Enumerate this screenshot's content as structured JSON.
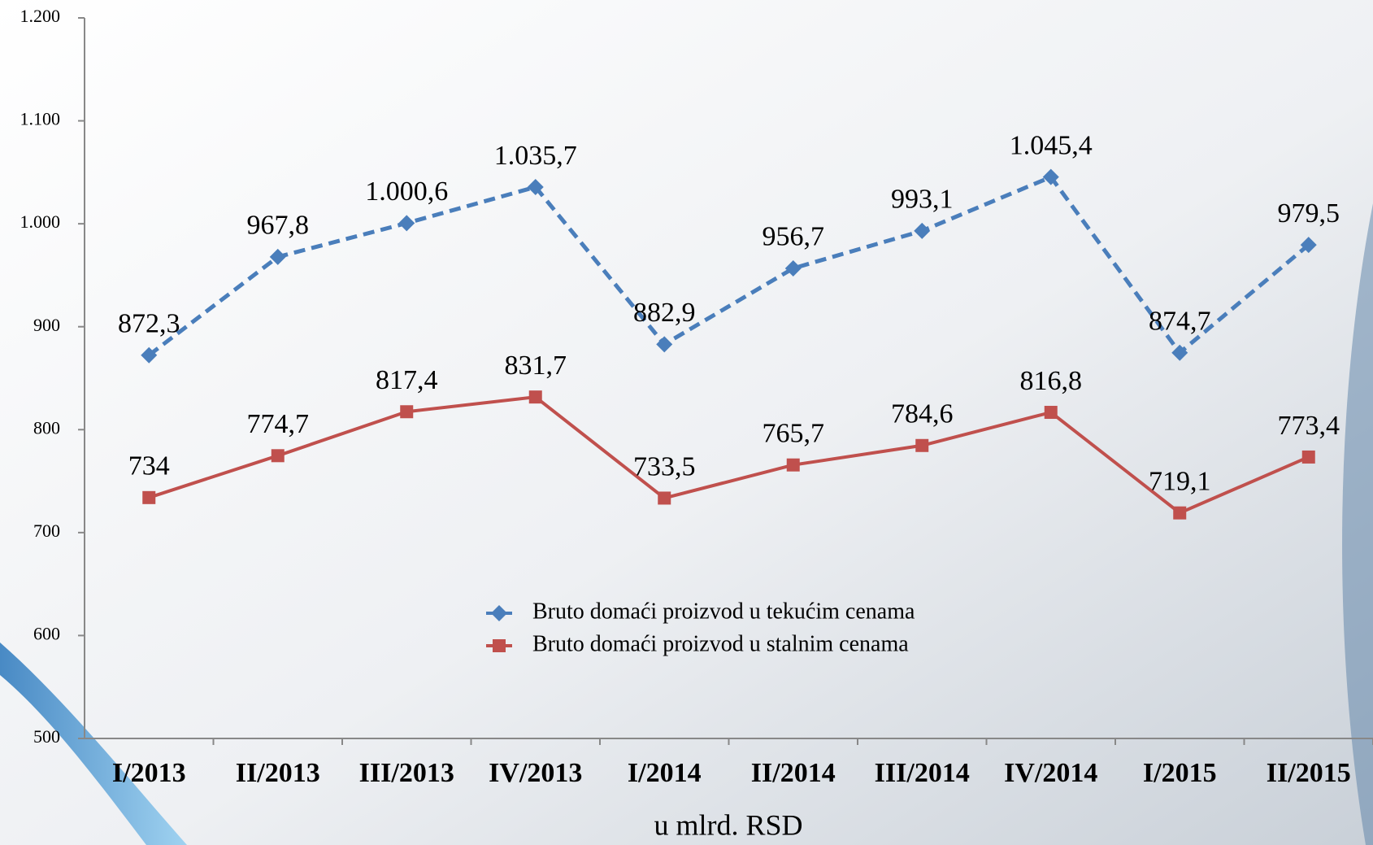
{
  "chart_data": {
    "type": "line",
    "categories": [
      "I/2013",
      "II/2013",
      "III/2013",
      "IV/2013",
      "I/2014",
      "II/2014",
      "III/2014",
      "IV/2014",
      "I/2015",
      "II/2015"
    ],
    "series": [
      {
        "name": "Bruto domaći proizvod u tekućim cenama",
        "color": "#4a7ebb",
        "dashed": true,
        "marker": "diamond",
        "values": [
          872.3,
          967.8,
          1000.6,
          1035.7,
          882.9,
          956.7,
          993.1,
          1045.4,
          874.7,
          979.5
        ],
        "value_labels": [
          "872,3",
          "967,8",
          "1.000,6",
          "1.035,7",
          "882,9",
          "956,7",
          "993,1",
          "1.045,4",
          "874,7",
          "979,5"
        ]
      },
      {
        "name": "Bruto domaći proizvod u stalnim cenama",
        "color": "#c0504d",
        "dashed": false,
        "marker": "square",
        "values": [
          734,
          774.7,
          817.4,
          831.7,
          733.5,
          765.7,
          784.6,
          816.8,
          719.1,
          773.4
        ],
        "value_labels": [
          "734",
          "774,7",
          "817,4",
          "831,7",
          "733,5",
          "765,7",
          "784,6",
          "816,8",
          "719,1",
          "773,4"
        ]
      }
    ],
    "xlabel": "u mlrd. RSD",
    "ylim": [
      500,
      1200
    ],
    "yticks": [
      500,
      600,
      700,
      800,
      900,
      {
        "value": 1000,
        "label": "1.000"
      },
      {
        "value": 1100,
        "label": "1.100"
      },
      {
        "value": 1200,
        "label": "1.200"
      }
    ],
    "grid": false,
    "legend": "center"
  }
}
